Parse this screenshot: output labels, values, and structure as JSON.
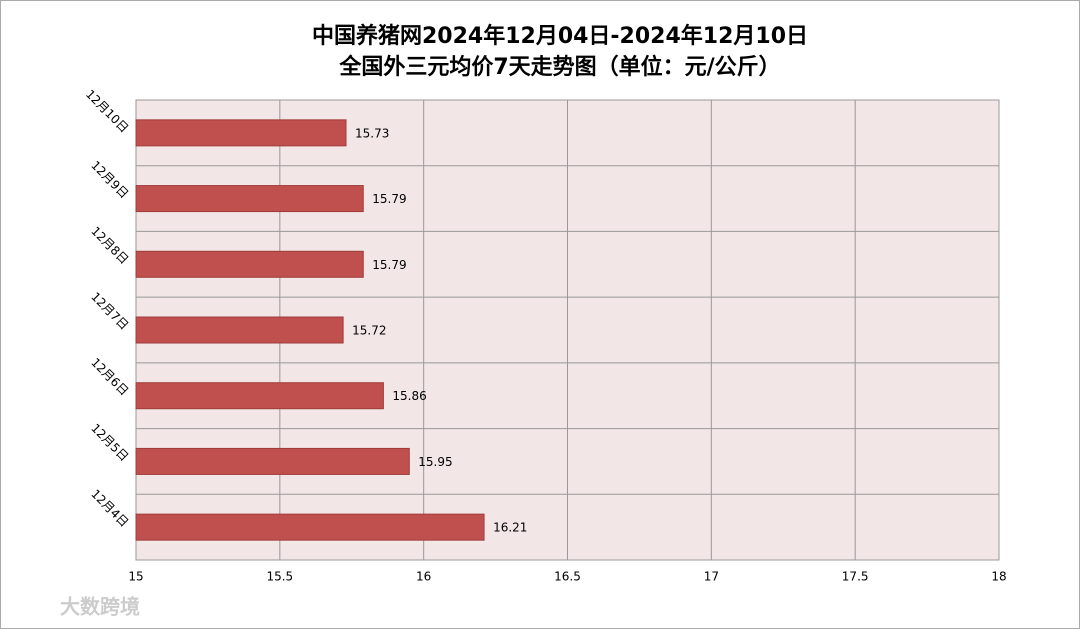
{
  "chart_data": {
    "type": "hbar",
    "title": "中国养猪网2024年12月04日-2024年12月10日",
    "subtitle": "全国外三元均价7天走势图（单位：元/公斤）",
    "categories": [
      "12月10日",
      "12月9日",
      "12月8日",
      "12月7日",
      "12月6日",
      "12月5日",
      "12月4日"
    ],
    "values": [
      15.73,
      15.79,
      15.79,
      15.72,
      15.86,
      15.95,
      16.21
    ],
    "color": "#c0504d",
    "xlim": [
      15,
      18
    ],
    "xticks": [
      15,
      15.5,
      16,
      16.5,
      17,
      17.5,
      18
    ],
    "grid": true,
    "watermark": "大数跨境"
  }
}
